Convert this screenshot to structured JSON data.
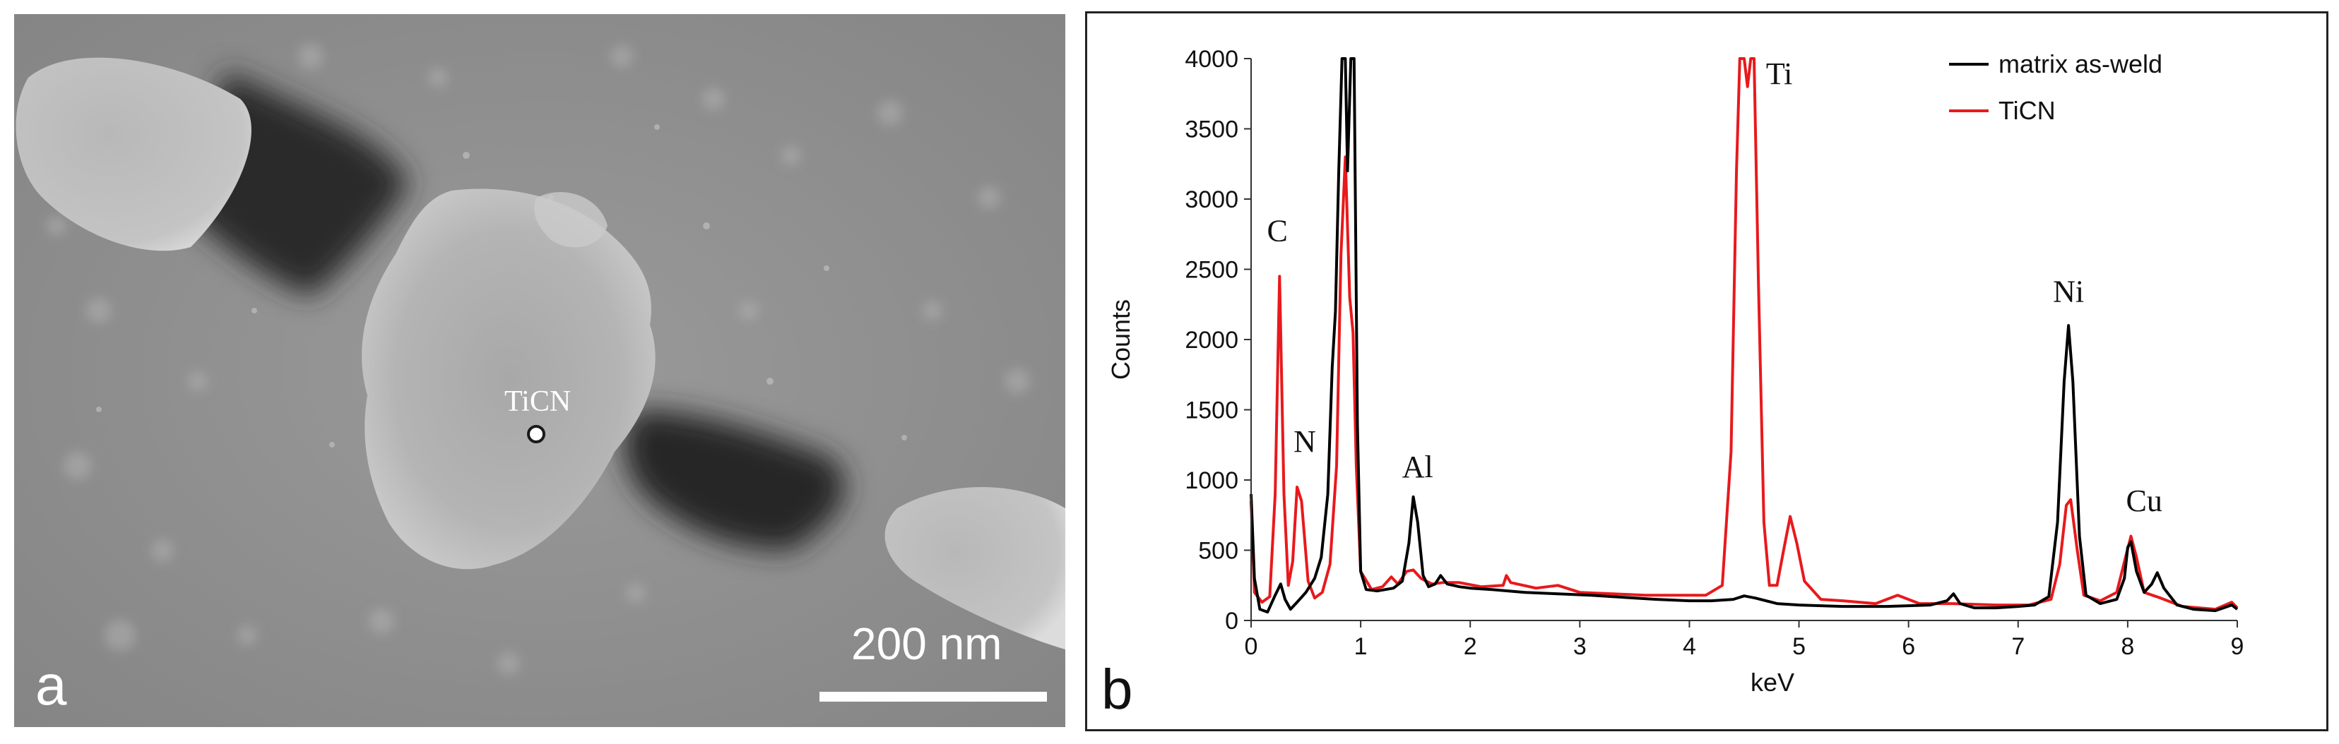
{
  "panel_a": {
    "letter": "a",
    "scale_bar_label": "200 nm",
    "particle_label": "TiCN"
  },
  "chart_data": {
    "type": "line",
    "panel_letter": "b",
    "xlabel": "keV",
    "ylabel": "Counts",
    "xlim": [
      0,
      9
    ],
    "ylim": [
      0,
      4000
    ],
    "x_ticks": [
      "0",
      "1",
      "2",
      "3",
      "4",
      "5",
      "6",
      "7",
      "8",
      "9"
    ],
    "y_ticks": [
      "0",
      "500",
      "1000",
      "1500",
      "2000",
      "2500",
      "3000",
      "3500",
      "4000"
    ],
    "legend_position": "top-right",
    "series": [
      {
        "name": "matrix as-weld",
        "color": "#000000",
        "points": [
          [
            0,
            900
          ],
          [
            0.03,
            300
          ],
          [
            0.08,
            80
          ],
          [
            0.15,
            60
          ],
          [
            0.22,
            180
          ],
          [
            0.27,
            260
          ],
          [
            0.31,
            150
          ],
          [
            0.36,
            80
          ],
          [
            0.42,
            130
          ],
          [
            0.5,
            200
          ],
          [
            0.58,
            300
          ],
          [
            0.64,
            450
          ],
          [
            0.7,
            900
          ],
          [
            0.74,
            1800
          ],
          [
            0.77,
            2200
          ],
          [
            0.8,
            3200
          ],
          [
            0.83,
            4000
          ],
          [
            0.86,
            4000
          ],
          [
            0.88,
            3200
          ],
          [
            0.91,
            4000
          ],
          [
            0.94,
            4000
          ],
          [
            0.97,
            1400
          ],
          [
            1.0,
            350
          ],
          [
            1.05,
            220
          ],
          [
            1.15,
            210
          ],
          [
            1.3,
            230
          ],
          [
            1.38,
            280
          ],
          [
            1.44,
            550
          ],
          [
            1.48,
            880
          ],
          [
            1.52,
            700
          ],
          [
            1.57,
            320
          ],
          [
            1.62,
            240
          ],
          [
            1.68,
            260
          ],
          [
            1.73,
            320
          ],
          [
            1.79,
            260
          ],
          [
            1.9,
            240
          ],
          [
            2.0,
            230
          ],
          [
            2.2,
            220
          ],
          [
            2.5,
            200
          ],
          [
            2.8,
            190
          ],
          [
            3.1,
            180
          ],
          [
            3.4,
            165
          ],
          [
            3.7,
            150
          ],
          [
            4.0,
            140
          ],
          [
            4.2,
            140
          ],
          [
            4.4,
            150
          ],
          [
            4.5,
            175
          ],
          [
            4.6,
            160
          ],
          [
            4.8,
            120
          ],
          [
            5.0,
            110
          ],
          [
            5.4,
            100
          ],
          [
            5.8,
            100
          ],
          [
            6.2,
            110
          ],
          [
            6.35,
            140
          ],
          [
            6.41,
            190
          ],
          [
            6.47,
            120
          ],
          [
            6.6,
            90
          ],
          [
            6.8,
            90
          ],
          [
            7.0,
            100
          ],
          [
            7.15,
            110
          ],
          [
            7.28,
            170
          ],
          [
            7.36,
            700
          ],
          [
            7.42,
            1700
          ],
          [
            7.46,
            2100
          ],
          [
            7.5,
            1700
          ],
          [
            7.56,
            600
          ],
          [
            7.62,
            180
          ],
          [
            7.75,
            120
          ],
          [
            7.9,
            150
          ],
          [
            7.97,
            300
          ],
          [
            8.0,
            520
          ],
          [
            8.03,
            560
          ],
          [
            8.08,
            350
          ],
          [
            8.15,
            200
          ],
          [
            8.22,
            260
          ],
          [
            8.27,
            340
          ],
          [
            8.33,
            230
          ],
          [
            8.45,
            110
          ],
          [
            8.6,
            80
          ],
          [
            8.8,
            70
          ],
          [
            8.95,
            110
          ],
          [
            9.0,
            80
          ]
        ]
      },
      {
        "name": "TiCN",
        "color": "#e8191c",
        "points": [
          [
            0,
            850
          ],
          [
            0.03,
            200
          ],
          [
            0.1,
            130
          ],
          [
            0.17,
            170
          ],
          [
            0.22,
            900
          ],
          [
            0.26,
            2450
          ],
          [
            0.3,
            900
          ],
          [
            0.34,
            250
          ],
          [
            0.38,
            420
          ],
          [
            0.42,
            950
          ],
          [
            0.46,
            850
          ],
          [
            0.52,
            280
          ],
          [
            0.58,
            160
          ],
          [
            0.65,
            200
          ],
          [
            0.72,
            400
          ],
          [
            0.78,
            1100
          ],
          [
            0.82,
            2600
          ],
          [
            0.86,
            3300
          ],
          [
            0.9,
            2300
          ],
          [
            0.93,
            2050
          ],
          [
            0.96,
            1100
          ],
          [
            1.0,
            350
          ],
          [
            1.1,
            220
          ],
          [
            1.2,
            240
          ],
          [
            1.28,
            310
          ],
          [
            1.34,
            260
          ],
          [
            1.42,
            350
          ],
          [
            1.48,
            360
          ],
          [
            1.55,
            300
          ],
          [
            1.65,
            260
          ],
          [
            1.75,
            270
          ],
          [
            1.9,
            270
          ],
          [
            2.1,
            240
          ],
          [
            2.3,
            250
          ],
          [
            2.33,
            320
          ],
          [
            2.37,
            270
          ],
          [
            2.6,
            230
          ],
          [
            2.8,
            250
          ],
          [
            3.0,
            200
          ],
          [
            3.3,
            190
          ],
          [
            3.6,
            180
          ],
          [
            3.9,
            180
          ],
          [
            4.15,
            180
          ],
          [
            4.3,
            250
          ],
          [
            4.38,
            1200
          ],
          [
            4.43,
            3200
          ],
          [
            4.46,
            4000
          ],
          [
            4.5,
            4000
          ],
          [
            4.53,
            3800
          ],
          [
            4.56,
            4000
          ],
          [
            4.59,
            4000
          ],
          [
            4.63,
            2400
          ],
          [
            4.68,
            700
          ],
          [
            4.73,
            250
          ],
          [
            4.8,
            250
          ],
          [
            4.86,
            500
          ],
          [
            4.92,
            740
          ],
          [
            4.98,
            550
          ],
          [
            5.05,
            280
          ],
          [
            5.2,
            150
          ],
          [
            5.4,
            140
          ],
          [
            5.7,
            120
          ],
          [
            5.9,
            180
          ],
          [
            6.1,
            120
          ],
          [
            6.4,
            120
          ],
          [
            6.8,
            110
          ],
          [
            7.1,
            110
          ],
          [
            7.3,
            150
          ],
          [
            7.38,
            400
          ],
          [
            7.44,
            820
          ],
          [
            7.48,
            860
          ],
          [
            7.54,
            500
          ],
          [
            7.6,
            180
          ],
          [
            7.75,
            140
          ],
          [
            7.9,
            200
          ],
          [
            7.98,
            450
          ],
          [
            8.03,
            600
          ],
          [
            8.08,
            450
          ],
          [
            8.15,
            200
          ],
          [
            8.3,
            160
          ],
          [
            8.5,
            100
          ],
          [
            8.8,
            80
          ],
          [
            8.95,
            130
          ],
          [
            9.0,
            90
          ]
        ]
      }
    ],
    "peak_labels": [
      {
        "text": "C",
        "x": 0.24,
        "y": 2700
      },
      {
        "text": "N",
        "x": 0.49,
        "y": 1200
      },
      {
        "text": "Al",
        "x": 1.52,
        "y": 1020
      },
      {
        "text": "Ti",
        "x": 4.82,
        "y": 3820
      },
      {
        "text": "Ni",
        "x": 7.46,
        "y": 2270
      },
      {
        "text": "Cu",
        "x": 8.15,
        "y": 780
      }
    ]
  }
}
